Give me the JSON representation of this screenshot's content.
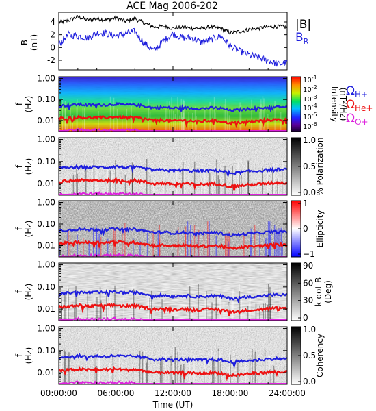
{
  "chart_data": [
    {
      "type": "line",
      "title": "ACE Mag 2006-202",
      "ylabel": "B",
      "yunit": "(nT)",
      "ylim": [
        -3.5,
        5.5
      ],
      "y_ticks": [
        "4",
        "2",
        "0",
        "-2"
      ],
      "legend_placement": "outside-right",
      "series": [
        {
          "name": "|B|",
          "color": "#000000",
          "x": [
            0,
            1,
            2,
            3,
            4,
            5,
            6,
            7,
            8,
            9,
            10,
            11,
            12,
            13,
            14,
            15,
            16,
            17,
            18,
            19,
            20,
            21,
            22,
            23,
            24
          ],
          "values": [
            3.9,
            4.2,
            4.8,
            4.3,
            4.5,
            4.3,
            4.6,
            4.1,
            4.5,
            3.8,
            3.2,
            3.3,
            3.0,
            3.2,
            3.0,
            3.0,
            3.2,
            3.0,
            2.3,
            2.5,
            2.8,
            3.0,
            3.2,
            3.3,
            3.2
          ]
        },
        {
          "name": "B",
          "subscript": "R",
          "color": "#1f1fdd",
          "x": [
            0,
            1,
            2,
            3,
            4,
            5,
            6,
            7,
            8,
            9,
            10,
            11,
            12,
            13,
            14,
            15,
            16,
            17,
            18,
            19,
            20,
            21,
            22,
            23,
            24
          ],
          "values": [
            0.5,
            2.0,
            1.8,
            1.5,
            2.3,
            2.2,
            1.8,
            2.2,
            2.5,
            0.6,
            -0.5,
            1.0,
            2.2,
            1.5,
            1.5,
            0.8,
            1.2,
            1.8,
            0.3,
            -0.6,
            -1.2,
            -1.6,
            -2.0,
            -2.6,
            -2.4
          ]
        }
      ]
    },
    {
      "type": "heatmap",
      "ylabel": "f",
      "yunit": "(Hz)",
      "y_scale": "log",
      "ylim": [
        0.003,
        1.2
      ],
      "y_ticks": [
        "1.00",
        "0.10",
        "0.01"
      ],
      "colorbar": {
        "label": "Intensity",
        "unit": "(nT",
        "unit_sup": "2",
        "unit_end": "/Hz)",
        "scale": "log",
        "ticks": [
          {
            "base": "10",
            "exp": "-1"
          },
          {
            "base": "10",
            "exp": "-2"
          },
          {
            "base": "10",
            "exp": "-3"
          },
          {
            "base": "10",
            "exp": "-4"
          },
          {
            "base": "10",
            "exp": "-5"
          },
          {
            "base": "10",
            "exp": "-6"
          }
        ]
      },
      "colormap": "rainbow",
      "legend": [
        {
          "symbol": "Ω",
          "sub": "H+",
          "color": "#1f1fdd"
        },
        {
          "symbol": "Ω",
          "sub": "He+",
          "color": "#ee1111"
        },
        {
          "symbol": "Ω",
          "sub": "O+",
          "color": "#dd22dd"
        }
      ]
    },
    {
      "type": "heatmap",
      "ylabel": "f",
      "yunit": "(Hz)",
      "y_scale": "log",
      "ylim": [
        0.003,
        1.2
      ],
      "y_ticks": [
        "1.00",
        "0.10",
        "0.01"
      ],
      "colorbar": {
        "label": "% Polarization",
        "ticks": [
          "1.0",
          "0.5",
          "0.0"
        ],
        "range": [
          0,
          1
        ]
      },
      "colormap": "grayscale"
    },
    {
      "type": "heatmap",
      "ylabel": "f",
      "yunit": "(Hz)",
      "y_scale": "log",
      "ylim": [
        0.003,
        1.2
      ],
      "y_ticks": [
        "1.00",
        "0.10",
        "0.01"
      ],
      "colorbar": {
        "label": "Ellipticity",
        "ticks": [
          "1",
          "0",
          "−1"
        ],
        "range": [
          -1,
          1
        ]
      },
      "colormap": "blue-white-red"
    },
    {
      "type": "heatmap",
      "ylabel": "f",
      "yunit": "(Hz)",
      "y_scale": "log",
      "ylim": [
        0.003,
        1.2
      ],
      "y_ticks": [
        "1.00",
        "0.10",
        "0.01"
      ],
      "colorbar": {
        "label": "k dot B",
        "unit": "(Deg)",
        "ticks": [
          "90",
          "60",
          "30",
          "0"
        ],
        "range": [
          0,
          90
        ]
      },
      "colormap": "grayscale"
    },
    {
      "type": "heatmap",
      "ylabel": "f",
      "yunit": "(Hz)",
      "y_scale": "log",
      "ylim": [
        0.003,
        1.2
      ],
      "y_ticks": [
        "1.00",
        "0.10",
        "0.01"
      ],
      "colorbar": {
        "label": "Coherency",
        "ticks": [
          "1.0",
          "0.5",
          "0.0"
        ],
        "range": [
          0,
          1
        ]
      },
      "colormap": "grayscale"
    }
  ],
  "gyro_lines": {
    "x": [
      0,
      1,
      2,
      3,
      4,
      5,
      6,
      7,
      8,
      9,
      10,
      11,
      12,
      13,
      14,
      15,
      16,
      17,
      18,
      19,
      20,
      21,
      22,
      23,
      24
    ],
    "H+": [
      0.05,
      0.052,
      0.058,
      0.054,
      0.056,
      0.055,
      0.06,
      0.054,
      0.056,
      0.048,
      0.04,
      0.042,
      0.038,
      0.041,
      0.038,
      0.037,
      0.04,
      0.038,
      0.03,
      0.032,
      0.036,
      0.038,
      0.042,
      0.044,
      0.043
    ],
    "He+": [
      0.0125,
      0.013,
      0.0145,
      0.0135,
      0.014,
      0.0138,
      0.015,
      0.0135,
      0.014,
      0.012,
      0.01,
      0.0105,
      0.0095,
      0.0102,
      0.0095,
      0.0092,
      0.01,
      0.0095,
      0.0075,
      0.008,
      0.009,
      0.0095,
      0.0105,
      0.011,
      0.0108
    ],
    "O+": [
      0.0031,
      0.0032,
      0.0036,
      0.0034,
      0.0035,
      0.0034,
      0.0037,
      0.0034,
      0.0035,
      0.003,
      0.0025,
      0.0026,
      0.0024,
      0.0026,
      0.0024,
      0.0023,
      0.0025,
      0.0024,
      0.0019,
      0.002,
      0.0023,
      0.0024,
      0.0026,
      0.0028,
      0.0027
    ]
  },
  "x_axis": {
    "label": "Time (UT)",
    "xlim": [
      0,
      24
    ],
    "ticks": [
      {
        "v": 0,
        "t": "00:00:00"
      },
      {
        "v": 6,
        "t": "06:00:00"
      },
      {
        "v": 12,
        "t": "12:00:00"
      },
      {
        "v": 18,
        "t": "18:00:00"
      },
      {
        "v": 24,
        "t": "24:00:00"
      }
    ]
  }
}
